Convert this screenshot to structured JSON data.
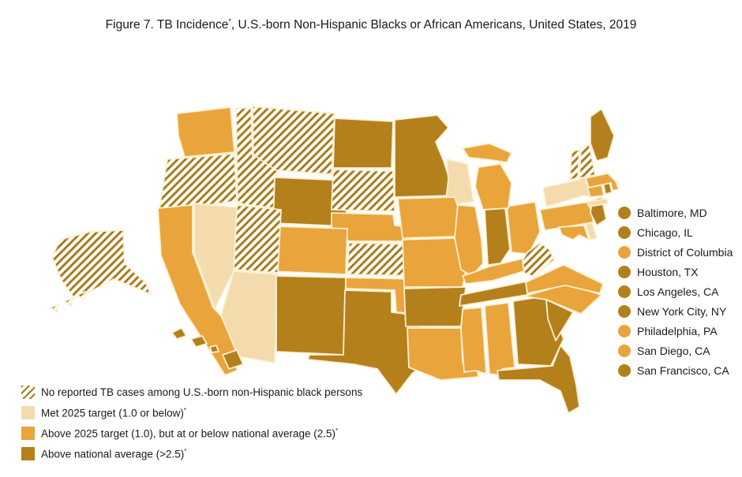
{
  "figure": {
    "title_prefix": "Figure 7. TB Incidence",
    "title_sup": "*",
    "title_suffix": ",  U.S.-born Non-Hispanic Blacks or African Americans, United States, 2019"
  },
  "category_colors": {
    "met": "#F3DBAD",
    "above_target": "#E9A43C",
    "above_avg": "#B3801C",
    "hatch_line": "#A97C1B",
    "border": "#FBF0D2",
    "text": "#1A1A1A"
  },
  "legend": {
    "categories": [
      {
        "id": "none",
        "swatch": "hatched",
        "label": "No reported TB cases among U.S.-born non-Hispanic black persons",
        "sup": ""
      },
      {
        "id": "met",
        "swatch": "solid",
        "label": "Met 2025 target (1.0 or below)",
        "sup": "*"
      },
      {
        "id": "above_target",
        "swatch": "solid",
        "label": "Above 2025 target (1.0), but at or below national average (2.5)",
        "sup": "*"
      },
      {
        "id": "above_avg",
        "swatch": "solid",
        "label": "Above national average (>2.5)",
        "sup": "*"
      }
    ]
  },
  "cities": [
    {
      "name": "Baltimore, MD",
      "category": "above_avg"
    },
    {
      "name": "Chicago, IL",
      "category": "above_avg"
    },
    {
      "name": "District of Columbia",
      "category": "above_target"
    },
    {
      "name": "Houston, TX",
      "category": "above_avg"
    },
    {
      "name": "Los Angeles, CA",
      "category": "above_avg"
    },
    {
      "name": "New York City, NY",
      "category": "above_avg"
    },
    {
      "name": "Philadelphia, PA",
      "category": "above_target"
    },
    {
      "name": "San Diego, CA",
      "category": "above_target"
    },
    {
      "name": "San Francisco, CA",
      "category": "above_avg"
    }
  ],
  "map": {
    "states": {
      "AK": "none",
      "AL": "above_target",
      "AR": "above_avg",
      "AZ": "met",
      "CA": "above_target",
      "CO": "above_target",
      "CT": "above_target",
      "DE": "met",
      "FL": "above_avg",
      "GA": "above_avg",
      "HI": "above_avg",
      "IA": "above_target",
      "ID": "none",
      "IL": "above_target",
      "IN": "above_avg",
      "KS": "none",
      "KY": "above_target",
      "LA": "above_target",
      "MA": "above_target",
      "MD": "above_target",
      "ME": "above_avg",
      "MI": "above_target",
      "MN": "above_avg",
      "MO": "above_target",
      "MS": "above_target",
      "MT": "none",
      "NC": "above_target",
      "ND": "above_avg",
      "NE": "above_target",
      "NH": "none",
      "NJ": "above_avg",
      "NM": "above_avg",
      "NV": "met",
      "NY": "met",
      "OH": "above_target",
      "OK": "above_target",
      "OR": "none",
      "PA": "above_target",
      "RI": "above_avg",
      "SC": "above_avg",
      "SD": "none",
      "TN": "above_avg",
      "TX": "above_avg",
      "UT": "none",
      "VA": "above_target",
      "VT": "none",
      "WA": "above_target",
      "WI": "met",
      "WV": "none",
      "WY": "above_avg"
    }
  }
}
